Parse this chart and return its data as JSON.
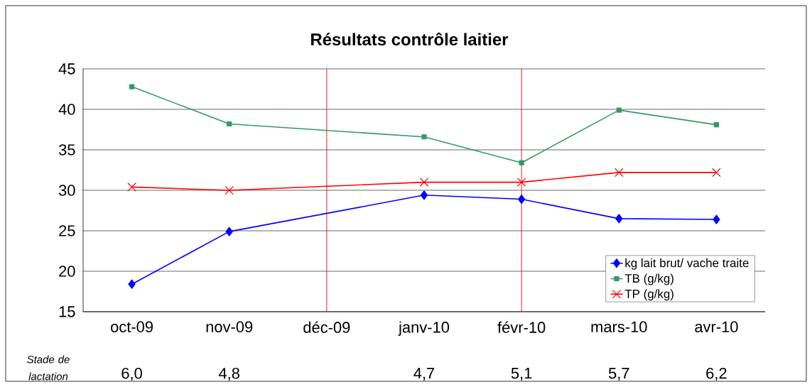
{
  "chart_data": {
    "type": "line",
    "title": "Résultats contrôle laitier",
    "categories": [
      "oct-09",
      "nov-09",
      "déc-09",
      "janv-10",
      "févr-10",
      "mars-10",
      "avr-10"
    ],
    "series": [
      {
        "name": "kg lait brut/ vache traite",
        "color": "#0000ff",
        "marker": "diamond",
        "values": [
          18.4,
          24.9,
          null,
          29.4,
          28.9,
          26.5,
          26.4
        ]
      },
      {
        "name": "TB (g/kg)",
        "color": "#339966",
        "marker": "square",
        "values": [
          42.8,
          38.2,
          null,
          36.6,
          33.4,
          39.9,
          38.1
        ]
      },
      {
        "name": "TP (g/kg)",
        "color": "#ff0000",
        "marker": "cross",
        "values": [
          30.4,
          30.0,
          null,
          31.0,
          31.0,
          32.2,
          32.2
        ]
      }
    ],
    "ylim": [
      15,
      45
    ],
    "yticks": [
      15,
      20,
      25,
      30,
      35,
      40,
      45
    ],
    "grid": "y",
    "legend": "bottom right",
    "ref_lines": [
      {
        "axis": "x",
        "value": "déc-09",
        "color": "#ff0000"
      },
      {
        "axis": "x",
        "value": "févr-10",
        "color": "#ff0000"
      }
    ],
    "annotations": [
      "Stade de lactation",
      "6,0",
      "4,8",
      "4,7",
      "5,1",
      "5,7",
      "6,2"
    ]
  }
}
